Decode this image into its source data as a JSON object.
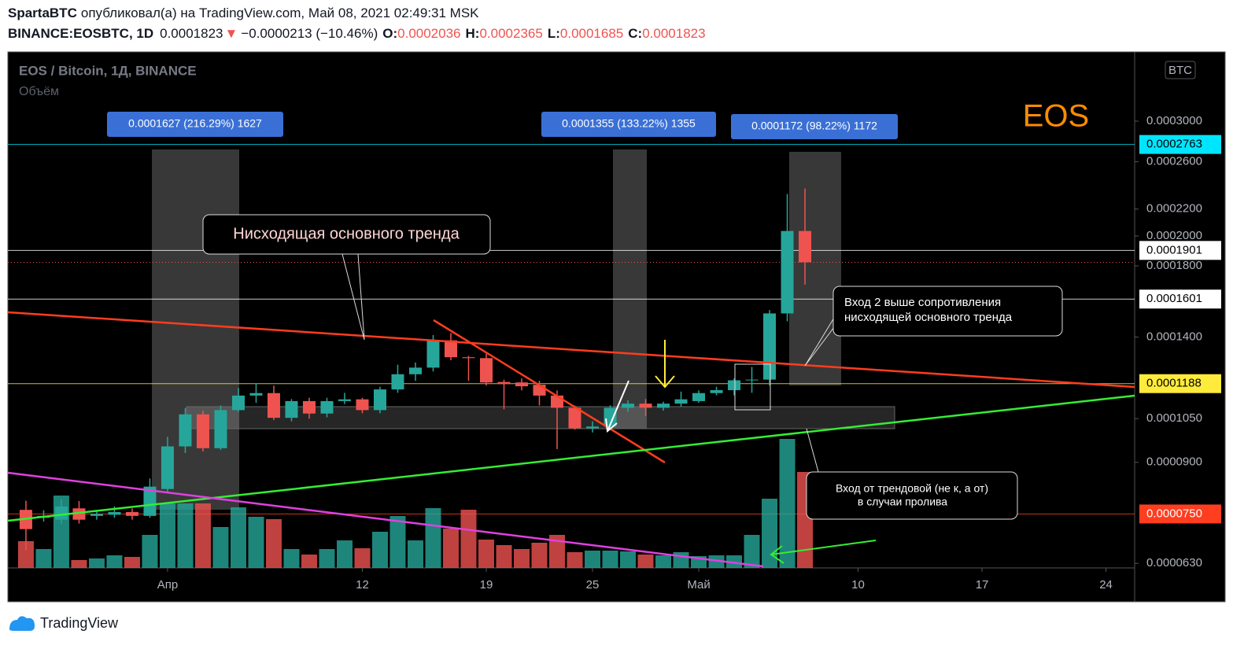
{
  "header": {
    "author": "SpartaBTC",
    "published": "опубликовал(а) на TradingView.com, Май 08, 2021 02:49:31 MSK",
    "symbol": "BINANCE:EOSBTC, 1D",
    "arrow": "▼",
    "change": "−0.0000213 (−10.46%)",
    "ohlc_labels": [
      "O:",
      "H:",
      "L:",
      "C:"
    ]
  },
  "chart_data": {
    "type": "candlestick",
    "title": "EOS / Bitcoin, 1Д, BINANCE",
    "volume_label": "Объём",
    "currency": "BTC",
    "watermark": "EOS",
    "x": [
      -8,
      -7,
      -6,
      -5,
      -4,
      -3,
      -2,
      -1,
      0,
      1,
      2,
      3,
      4,
      5,
      6,
      7,
      8,
      9,
      10,
      11,
      12,
      13,
      14,
      15,
      16,
      17,
      18,
      19,
      20,
      21,
      22,
      23,
      24,
      25,
      26,
      27,
      28,
      29,
      30,
      31,
      32,
      33,
      34,
      35,
      36
    ],
    "open": [
      7.61e-05,
      7.4e-05,
      7.35e-05,
      7.65e-05,
      7.45e-05,
      7.48e-05,
      7.55e-05,
      7.45e-05,
      8.19e-05,
      9.52e-05,
      0.0001066,
      9.46e-05,
      0.0001082,
      0.0001139,
      0.0001149,
      0.0001053,
      0.0001117,
      0.0001069,
      0.0001117,
      0.0001124,
      0.0001082,
      0.0001164,
      0.0001228,
      0.0001257,
      0.0001384,
      0.0001304,
      0.00013,
      0.0001195,
      0.0001193,
      0.0001183,
      0.0001139,
      0.0001091,
      0.0001015,
      0.0001021,
      0.0001091,
      0.0001107,
      0.0001091,
      0.0001107,
      0.0001117,
      0.0001149,
      0.0001161,
      0.0001202,
      0.0001205,
      0.0001522,
      0.0002036
    ],
    "high": [
      7.86e-05,
      7.6e-05,
      7.9e-05,
      7.85e-05,
      7.6e-05,
      7.7e-05,
      7.65e-05,
      8.5e-05,
      9.85e-05,
      0.000109,
      0.000108,
      0.00011,
      0.000117,
      0.000119,
      0.000118,
      0.0001125,
      0.000113,
      0.000113,
      0.000115,
      0.000113,
      0.0001175,
      0.000127,
      0.000128,
      0.000141,
      0.000142,
      0.000131,
      0.000132,
      0.0001205,
      0.000121,
      0.00012,
      0.000116,
      0.00011,
      0.000104,
      0.00011,
      0.000112,
      0.0001125,
      0.0001115,
      0.0001155,
      0.000116,
      0.0001175,
      0.000121,
      0.000126,
      0.000154,
      0.000232,
      0.0002365
    ],
    "low": [
      6.6e-05,
      7.3e-05,
      7.25e-05,
      7.25e-05,
      7.35e-05,
      7.4e-05,
      7.35e-05,
      7.4e-05,
      8.1e-05,
      9.3e-05,
      9.35e-05,
      9.4e-05,
      0.0001075,
      0.000111,
      0.0001045,
      0.000104,
      0.000105,
      0.0001055,
      0.0001105,
      0.000107,
      0.000107,
      0.000115,
      0.00012,
      0.000124,
      0.000129,
      0.00012,
      0.000118,
      0.0001085,
      0.000116,
      0.00011,
      9.43e-05,
      0.000101,
      0.0001,
      0.000101,
      0.0001075,
      0.000106,
      0.000108,
      0.0001095,
      0.000111,
      0.000114,
      0.000114,
      0.000115,
      0.000118,
      0.000148,
      0.0001685
    ],
    "close": [
      7.11e-05,
      7.45e-05,
      7.7e-05,
      7.35e-05,
      7.5e-05,
      7.55e-05,
      7.45e-05,
      8.26e-05,
      9.52e-05,
      0.0001066,
      9.46e-05,
      0.0001082,
      0.0001139,
      0.0001149,
      0.0001053,
      0.0001117,
      0.0001069,
      0.0001117,
      0.0001124,
      0.0001082,
      0.0001164,
      0.0001228,
      0.0001257,
      0.0001384,
      0.0001304,
      0.00013,
      0.0001193,
      0.0001186,
      0.0001177,
      0.0001139,
      0.0001091,
      0.0001015,
      0.0001021,
      0.0001091,
      0.0001107,
      0.0001091,
      0.0001107,
      0.0001124,
      0.0001149,
      0.0001161,
      0.0001202,
      0.0001205,
      0.0001522,
      0.0002036,
      0.0001823
    ],
    "volume": [
      34,
      24,
      92,
      10,
      12,
      16,
      14,
      42,
      82,
      82,
      82,
      52,
      77,
      65,
      62,
      24,
      17,
      24,
      35,
      25,
      46,
      66,
      35,
      76,
      50,
      74,
      36,
      29,
      24,
      32,
      42,
      20,
      22,
      22,
      21,
      17,
      16,
      20,
      15,
      16,
      16,
      42,
      88,
      164,
      122
    ],
    "up_color": "#26a69a",
    "down_color": "#ef5350",
    "log_scale": true,
    "xlim": [
      -9.02,
      54.62
    ],
    "xticks": [
      {
        "value": 0,
        "label": "Апр"
      },
      {
        "value": 11,
        "label": "12"
      },
      {
        "value": 18,
        "label": "19"
      },
      {
        "value": 24,
        "label": "25"
      },
      {
        "value": 30,
        "label": "Май"
      },
      {
        "value": 39,
        "label": "10"
      },
      {
        "value": 46,
        "label": "17"
      },
      {
        "value": 53,
        "label": "24"
      }
    ],
    "ylim": [
      6.2e-05,
      0.000383
    ],
    "yticks": [
      {
        "value": 0.0003,
        "label": "0.0003000"
      },
      {
        "value": 0.00026,
        "label": "0.0002600"
      },
      {
        "value": 0.00022,
        "label": "0.0002200"
      },
      {
        "value": 0.0002,
        "label": "0.0002000"
      },
      {
        "value": 0.00018,
        "label": "0.0001800"
      },
      {
        "value": 0.00014,
        "label": "0.0001400"
      },
      {
        "value": 0.000105,
        "label": "0.0001050"
      },
      {
        "value": 9e-05,
        "label": "0.0000900"
      },
      {
        "value": 6.3e-05,
        "label": "0.0000630"
      }
    ],
    "price_lines": [
      {
        "value": 0.0002763,
        "label": "0.0002763",
        "color": "#00e5ff",
        "text_color": "#000000"
      },
      {
        "value": 0.0001901,
        "label": "0.0001901",
        "color": "#ffffff",
        "text_color": "#000000"
      },
      {
        "value": 0.0001601,
        "label": "0.0001601",
        "color": "#ffffff",
        "text_color": "#000000"
      },
      {
        "value": 0.0001188,
        "label": "0.0001188",
        "color": "#ffeb3b",
        "text_color": "#000000"
      },
      {
        "value": 7.5e-05,
        "label": "0.0000750",
        "color": "#ff3d1f",
        "text_color": "#ffffff"
      }
    ],
    "range_labels": [
      "0.0001627 (216.29%) 1627",
      "0.0001355 (133.22%) 1355",
      "0.0001172 (98.22%) 1172"
    ],
    "callouts": [
      {
        "lines": [
          "Нисходящая основного тренда"
        ]
      },
      {
        "lines": [
          "Вход 2 выше сопротивления",
          "нисходящей основного тренда"
        ]
      },
      {
        "lines": [
          "Вход от трендовой (не к, а от)",
          "в случаи пролива"
        ]
      }
    ]
  },
  "footer": {
    "brand": "TradingView"
  }
}
